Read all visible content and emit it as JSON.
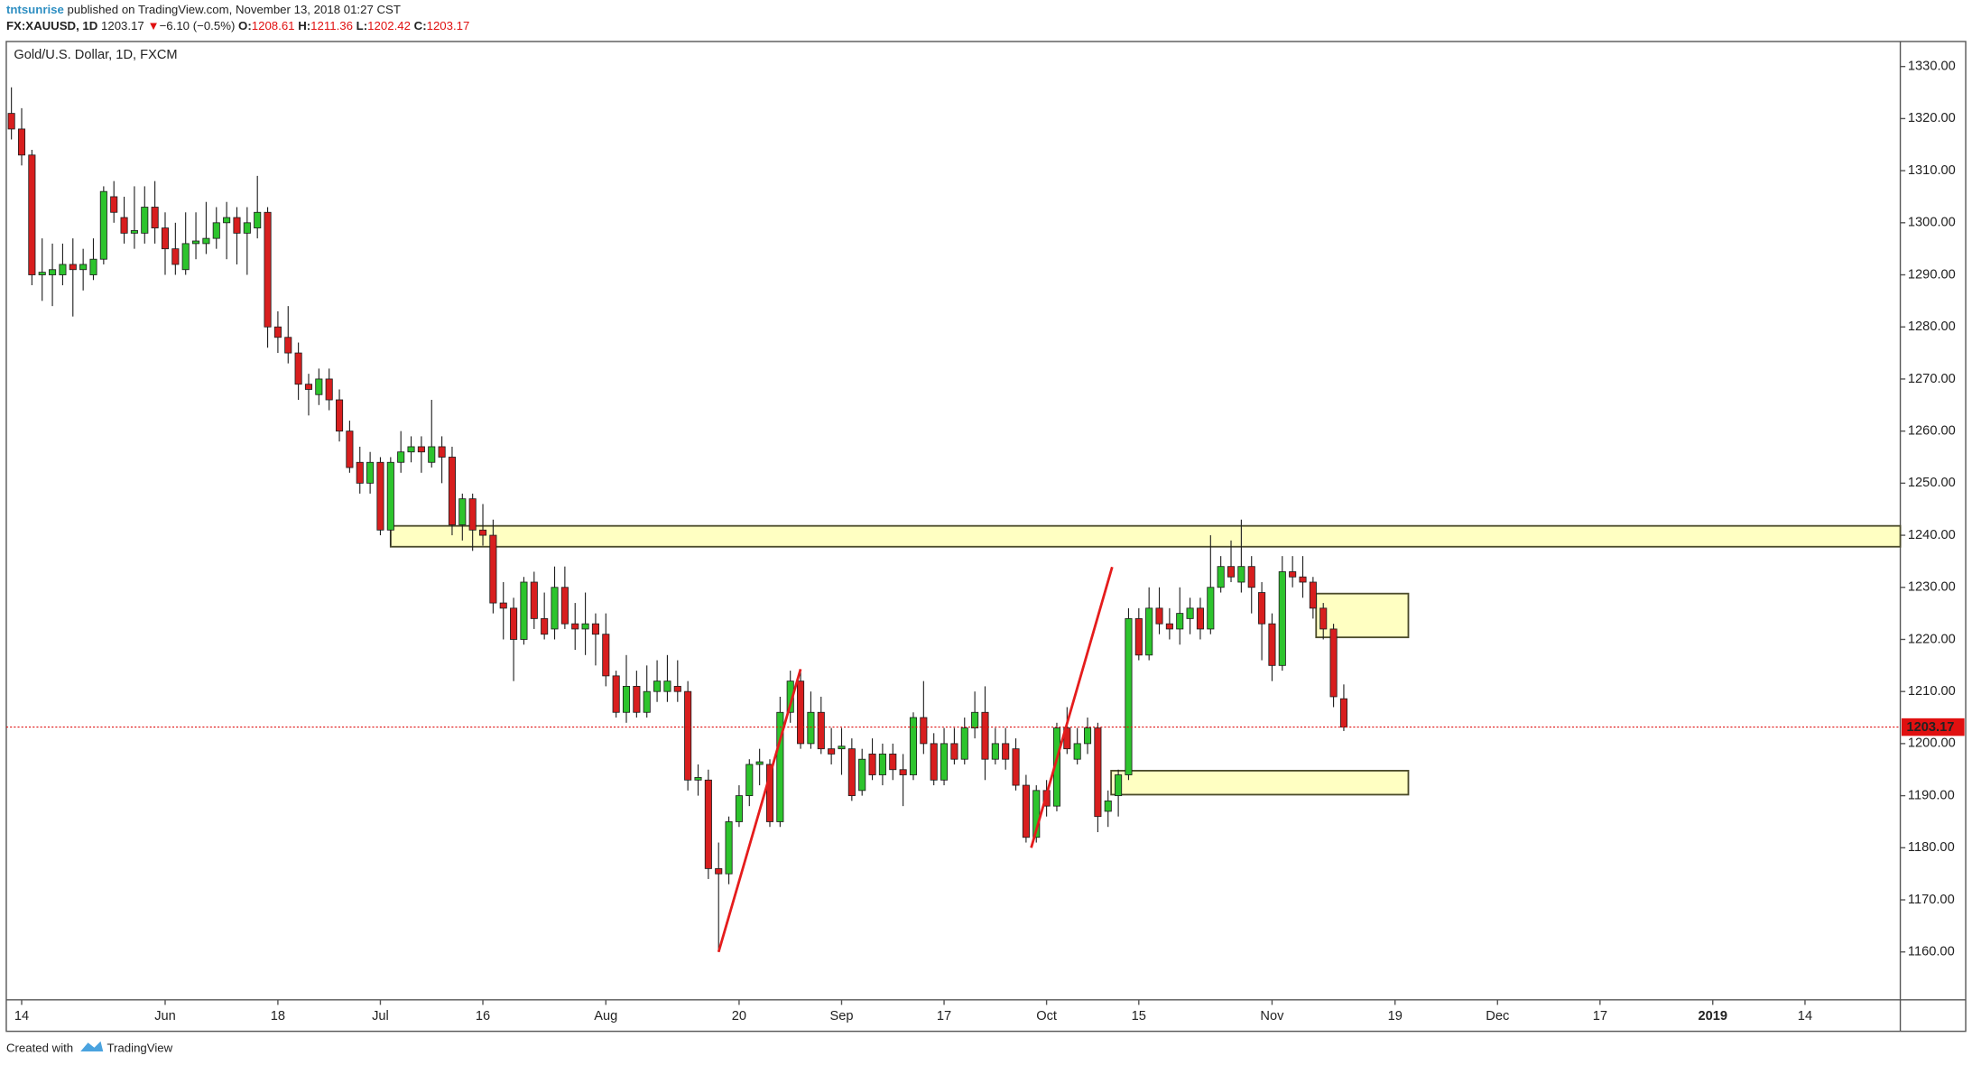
{
  "header": {
    "user": "tntsunrise",
    "published": "published on TradingView.com, November 13, 2018 01:27 CST",
    "symbol": "FX:XAUUSD, 1D",
    "last": "1203.17",
    "arrow": "▼",
    "change": "−6.10 (−0.5%)",
    "ohlc": [
      {
        "label": "O:",
        "value": "1208.61"
      },
      {
        "label": "H:",
        "value": "1211.36"
      },
      {
        "label": "L:",
        "value": "1202.42"
      },
      {
        "label": "C:",
        "value": "1203.17"
      }
    ]
  },
  "footer": {
    "created": "Created with",
    "brand": "TradingView"
  },
  "chart_data": {
    "type": "candlestick",
    "title": "Gold/U.S. Dollar, 1D, FXCM",
    "up_color": "#2dc42d",
    "down_color": "#d81e1e",
    "border_color": "#1e1e1e",
    "open": [
      1321,
      1318,
      1313,
      1290,
      1290,
      1290,
      1292,
      1291,
      1290,
      1293,
      1305,
      1301,
      1298,
      1298,
      1303,
      1299,
      1295,
      1291,
      1296,
      1296,
      1297,
      1300,
      1301,
      1298,
      1299,
      1302,
      1280,
      1278,
      1275,
      1269,
      1267,
      1270,
      1266,
      1260,
      1254,
      1250,
      1254,
      1241,
      1254,
      1256,
      1257,
      1254,
      1257,
      1255,
      1242,
      1247,
      1241,
      1240,
      1227,
      1226,
      1220,
      1231,
      1224,
      1222,
      1230,
      1223,
      1222,
      1223,
      1221,
      1213,
      1206,
      1211,
      1206,
      1210,
      1210,
      1211,
      1210,
      1193,
      1193,
      1176,
      1175,
      1185,
      1190,
      1196,
      1196,
      1185,
      1206,
      1212,
      1200,
      1206,
      1199,
      1199,
      1199,
      1191,
      1198,
      1194,
      1198,
      1195,
      1194,
      1205,
      1200,
      1193,
      1200,
      1197,
      1203,
      1206,
      1197,
      1200,
      1199,
      1192,
      1182,
      1191,
      1188,
      1203,
      1197,
      1200,
      1203,
      1187,
      1190,
      1194,
      1224,
      1217,
      1226,
      1223,
      1222,
      1224,
      1226,
      1222,
      1230,
      1234,
      1231,
      1234,
      1229,
      1223,
      1215,
      1233,
      1232,
      1231,
      1226,
      1222,
      1208.61
    ],
    "high": [
      1326,
      1322,
      1314,
      1297,
      1296,
      1296,
      1297,
      1295,
      1297,
      1307,
      1308,
      1305,
      1307,
      1307,
      1308,
      1302,
      1300,
      1302,
      1302,
      1304,
      1303,
      1304,
      1303,
      1303,
      1309,
      1303,
      1283,
      1284,
      1277,
      1271,
      1272,
      1272,
      1268,
      1262,
      1257,
      1256,
      1255,
      1255,
      1260,
      1259,
      1259,
      1266,
      1259,
      1257,
      1248,
      1248,
      1246,
      1243,
      1231,
      1228,
      1232,
      1233,
      1229,
      1234,
      1234,
      1227,
      1229,
      1225,
      1225,
      1214,
      1217,
      1214,
      1215,
      1216,
      1217,
      1216,
      1212,
      1196,
      1195,
      1181,
      1186,
      1192,
      1197,
      1199,
      1197,
      1209,
      1214,
      1214,
      1210,
      1209,
      1203,
      1203,
      1201,
      1199,
      1201,
      1200,
      1200,
      1198,
      1206,
      1212,
      1202,
      1203,
      1203,
      1205,
      1210,
      1211,
      1203,
      1203,
      1201,
      1194,
      1192,
      1193,
      1204,
      1207,
      1203,
      1205,
      1204,
      1191,
      1195,
      1226,
      1226,
      1230,
      1230,
      1226,
      1230,
      1228,
      1228,
      1240,
      1236,
      1239,
      1243,
      1236,
      1231,
      1225,
      1236,
      1236,
      1236,
      1232,
      1227,
      1223,
      1211.36
    ],
    "low": [
      1316,
      1311,
      1288,
      1285,
      1284,
      1288,
      1282,
      1287,
      1289,
      1292,
      1300,
      1296,
      1295,
      1296,
      1296,
      1290,
      1290,
      1290,
      1293,
      1294,
      1295,
      1293,
      1292,
      1290,
      1297,
      1276,
      1275,
      1273,
      1266,
      1263,
      1265,
      1264,
      1258,
      1252,
      1248,
      1248,
      1240,
      1238,
      1252,
      1254,
      1252,
      1253,
      1250,
      1240,
      1239,
      1237,
      1238,
      1225,
      1220,
      1212,
      1219,
      1222,
      1220,
      1220,
      1222,
      1218,
      1217,
      1215,
      1211,
      1205,
      1204,
      1205,
      1205,
      1208,
      1208,
      1208,
      1191,
      1190,
      1174,
      1160,
      1173,
      1184,
      1188,
      1192,
      1184,
      1184,
      1204,
      1199,
      1199,
      1198,
      1196,
      1194,
      1189,
      1190,
      1193,
      1192,
      1193,
      1188,
      1193,
      1198,
      1192,
      1192,
      1196,
      1196,
      1201,
      1193,
      1196,
      1195,
      1191,
      1181,
      1181,
      1186,
      1187,
      1198,
      1196,
      1198,
      1183,
      1184,
      1186,
      1193,
      1216,
      1216,
      1221,
      1220,
      1219,
      1221,
      1220,
      1221,
      1229,
      1231,
      1229,
      1225,
      1216,
      1212,
      1214,
      1230,
      1228,
      1224,
      1220,
      1207,
      1202.42
    ],
    "close": [
      1318,
      1313,
      1290,
      1290.5,
      1291,
      1292,
      1291,
      1292,
      1293,
      1306,
      1302,
      1298,
      1298.5,
      1303,
      1299,
      1295,
      1292,
      1296,
      1296.5,
      1297,
      1300,
      1301,
      1298,
      1300,
      1302,
      1280,
      1278,
      1275,
      1269,
      1268,
      1270,
      1266,
      1260,
      1253,
      1250,
      1254,
      1241,
      1254,
      1256,
      1257,
      1256,
      1257,
      1255,
      1242,
      1247,
      1241,
      1240,
      1227,
      1226,
      1220,
      1231,
      1224,
      1221,
      1230,
      1223,
      1222,
      1223,
      1221,
      1213,
      1206,
      1211,
      1206,
      1210,
      1212,
      1212,
      1210,
      1193,
      1193.5,
      1176,
      1175,
      1185,
      1190,
      1196,
      1196.5,
      1185,
      1206,
      1212,
      1200,
      1206,
      1199,
      1198,
      1199.5,
      1190,
      1197,
      1194,
      1198,
      1195,
      1194,
      1205,
      1200,
      1193,
      1200,
      1197,
      1203,
      1206,
      1197,
      1200,
      1197,
      1192,
      1182,
      1191,
      1188,
      1203,
      1199,
      1200,
      1203,
      1186,
      1189,
      1194,
      1224,
      1217,
      1226,
      1223,
      1222,
      1225,
      1226,
      1222,
      1230,
      1234,
      1232,
      1234,
      1230,
      1223,
      1215,
      1233,
      1232,
      1231,
      1226,
      1222,
      1209,
      1203.17
    ],
    "xlim": [
      -0.5,
      184.3
    ],
    "ylim": [
      1150.8,
      1334.8
    ],
    "xticks": [
      {
        "value": 1,
        "label": "14"
      },
      {
        "value": 15,
        "label": "Jun"
      },
      {
        "value": 26,
        "label": "18"
      },
      {
        "value": 36,
        "label": "Jul"
      },
      {
        "value": 46,
        "label": "16"
      },
      {
        "value": 58,
        "label": "Aug"
      },
      {
        "value": 71,
        "label": "20"
      },
      {
        "value": 81,
        "label": "Sep"
      },
      {
        "value": 91,
        "label": "17"
      },
      {
        "value": 101,
        "label": "Oct"
      },
      {
        "value": 110,
        "label": "15"
      },
      {
        "value": 123,
        "label": "Nov"
      },
      {
        "value": 135,
        "label": "19"
      },
      {
        "value": 145,
        "label": "Dec"
      },
      {
        "value": 155,
        "label": "17"
      },
      {
        "value": 166,
        "label": "2019"
      },
      {
        "value": 175,
        "label": "14"
      }
    ],
    "yticks": [
      {
        "value": 1160,
        "label": "1160.00"
      },
      {
        "value": 1170,
        "label": "1170.00"
      },
      {
        "value": 1180,
        "label": "1180.00"
      },
      {
        "value": 1190,
        "label": "1190.00"
      },
      {
        "value": 1200,
        "label": "1200.00"
      },
      {
        "value": 1210,
        "label": "1210.00"
      },
      {
        "value": 1220,
        "label": "1220.00"
      },
      {
        "value": 1230,
        "label": "1230.00"
      },
      {
        "value": 1240,
        "label": "1240.00"
      },
      {
        "value": 1250,
        "label": "1250.00"
      },
      {
        "value": 1260,
        "label": "1260.00"
      },
      {
        "value": 1270,
        "label": "1270.00"
      },
      {
        "value": 1280,
        "label": "1280.00"
      },
      {
        "value": 1290,
        "label": "1290.00"
      },
      {
        "value": 1300,
        "label": "1300.00"
      },
      {
        "value": 1310,
        "label": "1310.00"
      },
      {
        "value": 1320,
        "label": "1320.00"
      },
      {
        "value": 1330,
        "label": "1330.00"
      }
    ],
    "last_price": {
      "value": 1203.17,
      "label": "1203.17",
      "color": "#e01010"
    },
    "zones": [
      {
        "x": [
          37,
          184.3
        ],
        "y": [
          1237.8,
          1241.8
        ]
      },
      {
        "x": [
          127.3,
          136.3
        ],
        "y": [
          1220.4,
          1228.8
        ]
      },
      {
        "x": [
          107.3,
          136.3
        ],
        "y": [
          1190.2,
          1194.8
        ]
      }
    ],
    "zone_fill": "#ffffc2",
    "zone_stroke": "#4a4a2a",
    "trend_lines": [
      {
        "x": [
          69,
          77
        ],
        "y": [
          1160,
          1214.3
        ]
      },
      {
        "x": [
          99.5,
          107.4
        ],
        "y": [
          1180,
          1233.9
        ]
      }
    ],
    "line_color": "#e51c1c"
  }
}
